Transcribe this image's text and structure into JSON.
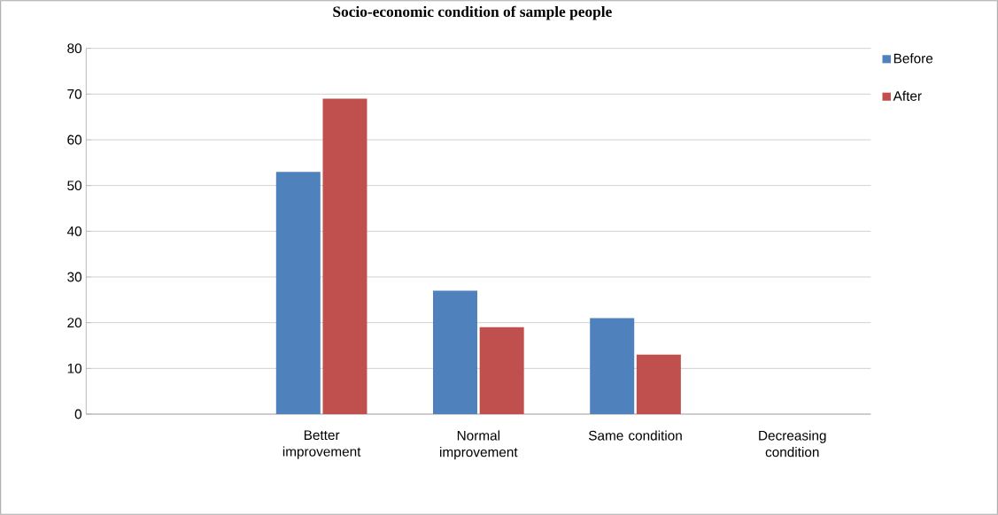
{
  "chart_data": {
    "type": "bar",
    "title": "Socio-economic condition of sample people",
    "categories": [
      null,
      "Better improvement",
      "Normal improvement",
      "Same condition",
      "Decreasing condition"
    ],
    "series": [
      {
        "name": "Before",
        "color": "#4f81bd",
        "values": [
          null,
          53,
          27,
          21,
          null
        ]
      },
      {
        "name": "After",
        "color": "#c0504d",
        "values": [
          null,
          69,
          19,
          13,
          null
        ]
      }
    ],
    "ylim": [
      0,
      80
    ],
    "yticks": [
      0,
      10,
      20,
      30,
      40,
      50,
      60,
      70,
      80
    ],
    "grid": "y",
    "legend": "top right"
  }
}
